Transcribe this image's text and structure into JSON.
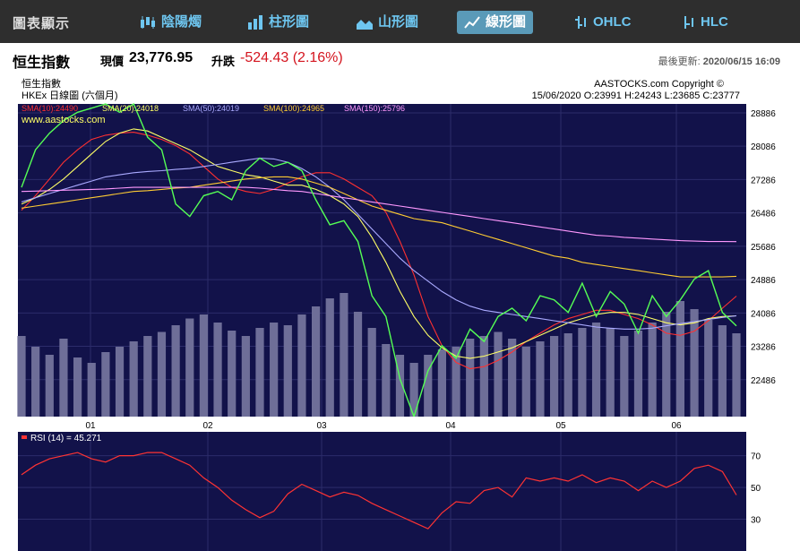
{
  "topbar": {
    "title": "圖表顯示",
    "tabs": [
      {
        "label": "陰陽燭",
        "icon": "candlestick-icon",
        "active": false
      },
      {
        "label": "柱形圖",
        "icon": "bar-chart-icon",
        "active": false
      },
      {
        "label": "山形圖",
        "icon": "area-chart-icon",
        "active": false
      },
      {
        "label": "線形圖",
        "icon": "line-chart-icon",
        "active": true
      },
      {
        "label": "OHLC",
        "icon": "ohlc-icon",
        "active": false
      },
      {
        "label": "HLC",
        "icon": "hlc-icon",
        "active": false
      }
    ]
  },
  "quote": {
    "name": "恒生指數",
    "price_label": "現價",
    "price": "23,776.95",
    "change_label": "升跌",
    "change": "-524.43 (2.16%)",
    "updated_label": "最後更新:",
    "updated": "2020/06/15 16:09"
  },
  "header": {
    "name": "恒生指數",
    "subtitle": "HKEx 日線圖 (六個月)",
    "copyright": "AASTOCKS.com Copyright ©",
    "ohlc": "15/06/2020  O:23991  H:24243  L:23685  C:23777",
    "watermark": "www.aastocks.com"
  },
  "colors": {
    "price": "#55ff55",
    "sma10": "#ff3030",
    "sma20": "#ffff66",
    "sma50": "#aaaaff",
    "sma100": "#ffcc33",
    "sma150": "#ff99ff",
    "rsi": "#ff3333",
    "plot_bg": "#12124a",
    "volume": "#6e6e98"
  },
  "chart_data": [
    {
      "type": "line",
      "title": "恒生指數",
      "series": [
        {
          "name": "SMA(10):24490",
          "key": "sma10",
          "values": [
            26550,
            26900,
            27300,
            27700,
            28000,
            28250,
            28350,
            28400,
            28420,
            28350,
            28250,
            28100,
            27900,
            27600,
            27300,
            27100,
            27000,
            26950,
            27050,
            27200,
            27350,
            27450,
            27450,
            27300,
            27100,
            26900,
            26500,
            25800,
            25000,
            24000,
            23300,
            22900,
            22750,
            22800,
            22950,
            23150,
            23400,
            23600,
            23800,
            23950,
            24050,
            24150,
            24150,
            24050,
            23950,
            23800,
            23600,
            23550,
            23650,
            23900,
            24200,
            24490
          ]
        },
        {
          "name": "SMA(20):24018",
          "key": "sma20",
          "values": [
            26700,
            26850,
            27050,
            27300,
            27600,
            27900,
            28200,
            28400,
            28500,
            28450,
            28300,
            28150,
            28000,
            27800,
            27600,
            27500,
            27400,
            27350,
            27250,
            27150,
            27150,
            27050,
            26900,
            26700,
            26400,
            25900,
            25300,
            24600,
            24000,
            23550,
            23250,
            23050,
            23000,
            23050,
            23150,
            23250,
            23400,
            23550,
            23700,
            23850,
            23950,
            24050,
            24100,
            24100,
            24050,
            23950,
            23850,
            23800,
            23850,
            23950,
            24000,
            24018
          ]
        },
        {
          "name": "SMA(50):24019",
          "key": "sma50",
          "values": [
            26750,
            26850,
            26950,
            27050,
            27150,
            27250,
            27350,
            27400,
            27450,
            27480,
            27500,
            27530,
            27550,
            27600,
            27650,
            27700,
            27750,
            27800,
            27780,
            27700,
            27550,
            27350,
            27100,
            26800,
            26450,
            26100,
            25750,
            25400,
            25100,
            24850,
            24600,
            24400,
            24250,
            24150,
            24100,
            24050,
            24000,
            23950,
            23900,
            23850,
            23800,
            23750,
            23720,
            23700,
            23700,
            23720,
            23780,
            23830,
            23880,
            23930,
            23980,
            24019
          ]
        },
        {
          "name": "SMA(100):24965",
          "key": "sma100",
          "values": [
            26600,
            26650,
            26700,
            26750,
            26800,
            26850,
            26900,
            26950,
            27000,
            27020,
            27050,
            27080,
            27100,
            27150,
            27200,
            27250,
            27300,
            27330,
            27350,
            27350,
            27300,
            27200,
            27100,
            26950,
            26800,
            26650,
            26550,
            26450,
            26350,
            26300,
            26250,
            26150,
            26050,
            25950,
            25850,
            25750,
            25650,
            25550,
            25450,
            25400,
            25300,
            25250,
            25200,
            25150,
            25100,
            25050,
            25000,
            24950,
            24950,
            24950,
            24950,
            24965
          ]
        },
        {
          "name": "SMA(150):25796",
          "key": "sma150",
          "values": [
            27000,
            27010,
            27020,
            27030,
            27040,
            27050,
            27060,
            27080,
            27100,
            27100,
            27100,
            27100,
            27100,
            27100,
            27100,
            27100,
            27100,
            27080,
            27050,
            27020,
            27000,
            26950,
            26900,
            26850,
            26800,
            26750,
            26700,
            26650,
            26600,
            26550,
            26500,
            26450,
            26400,
            26350,
            26300,
            26250,
            26200,
            26150,
            26100,
            26050,
            26000,
            25950,
            25930,
            25900,
            25880,
            25860,
            25840,
            25820,
            25810,
            25800,
            25800,
            25796
          ]
        },
        {
          "name": "恒生指數",
          "key": "price",
          "values": [
            27100,
            28000,
            28400,
            28700,
            28900,
            29000,
            29100,
            28900,
            29100,
            28300,
            28000,
            26700,
            26400,
            26900,
            27000,
            26800,
            27500,
            27800,
            27600,
            27700,
            27500,
            26800,
            26200,
            26300,
            25800,
            24500,
            24000,
            22500,
            21600,
            22700,
            23300,
            23000,
            23700,
            23400,
            24000,
            24200,
            23900,
            24500,
            24400,
            24100,
            24800,
            24000,
            24600,
            24300,
            23600,
            24500,
            24000,
            24400,
            24900,
            25100,
            24100,
            23777
          ]
        }
      ],
      "volume": [
        0.6,
        0.52,
        0.46,
        0.58,
        0.44,
        0.4,
        0.48,
        0.52,
        0.56,
        0.6,
        0.63,
        0.68,
        0.73,
        0.76,
        0.7,
        0.64,
        0.6,
        0.66,
        0.7,
        0.68,
        0.76,
        0.82,
        0.88,
        0.92,
        0.78,
        0.66,
        0.54,
        0.46,
        0.4,
        0.46,
        0.5,
        0.52,
        0.58,
        0.6,
        0.63,
        0.58,
        0.52,
        0.56,
        0.6,
        0.62,
        0.66,
        0.7,
        0.66,
        0.6,
        0.64,
        0.7,
        0.78,
        0.86,
        0.8,
        0.72,
        0.68,
        0.62
      ],
      "x_labels": [
        "01",
        "02",
        "03",
        "04",
        "05",
        "06"
      ],
      "y_ticks": [
        22486,
        23286,
        24086,
        24886,
        25686,
        26486,
        27286,
        28086,
        28886
      ],
      "ylim": [
        21600,
        29100
      ]
    },
    {
      "type": "line",
      "title": "RSI (14) = 45.271",
      "series": [
        {
          "name": "RSI (14) = 45.271",
          "key": "rsi",
          "values": [
            58,
            64,
            68,
            70,
            72,
            68,
            66,
            70,
            70,
            72,
            72,
            68,
            64,
            56,
            50,
            42,
            36,
            31,
            35,
            46,
            52,
            48,
            44,
            47,
            45,
            40,
            36,
            32,
            28,
            24,
            34,
            41,
            40,
            48,
            50,
            44,
            56,
            54,
            56,
            54,
            58,
            53,
            56,
            54,
            48,
            54,
            50,
            54,
            62,
            64,
            60,
            45.271
          ]
        }
      ],
      "y_ticks": [
        30,
        50,
        70
      ],
      "ylim": [
        10,
        85
      ]
    }
  ]
}
